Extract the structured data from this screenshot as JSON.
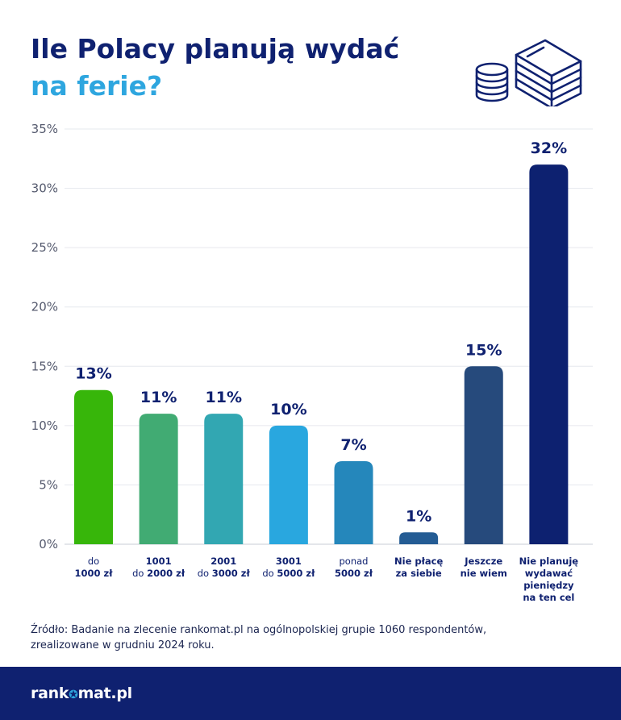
{
  "title": {
    "line1": "Ile Polacy planują wydać",
    "line2": "na ferie?"
  },
  "source": {
    "line1": "Źródło: Badanie na zlecenie rankomat.pl na ogólnopolskiej grupie 1060 respondentów,",
    "line2": "zrealizowane w grudniu 2024 roku."
  },
  "footer": {
    "logo_left": "rank",
    "logo_right": "mat.pl"
  },
  "chart_data": {
    "type": "bar",
    "ylim": [
      0,
      35
    ],
    "yticks": [
      "0%",
      "5%",
      "10%",
      "15%",
      "20%",
      "25%",
      "30%",
      "35%"
    ],
    "grid": true,
    "categories": [
      {
        "lines": [
          {
            "t": "do",
            "b": false
          },
          {
            "t": "1000 zł",
            "b": true
          }
        ]
      },
      {
        "lines": [
          {
            "t": "1001",
            "b": true
          },
          {
            "t": "do ",
            "b": false,
            "t2": "2000 zł"
          }
        ]
      },
      {
        "lines": [
          {
            "t": "2001",
            "b": true
          },
          {
            "t": "do ",
            "b": false,
            "t2": "3000 zł"
          }
        ]
      },
      {
        "lines": [
          {
            "t": "3001",
            "b": true
          },
          {
            "t": "do ",
            "b": false,
            "t2": "5000 zł"
          }
        ]
      },
      {
        "lines": [
          {
            "t": "ponad",
            "b": false
          },
          {
            "t": "5000 zł",
            "b": true
          }
        ]
      },
      {
        "lines": [
          {
            "t": "Nie płacę",
            "b": true
          },
          {
            "t": "za siebie",
            "b": true
          }
        ]
      },
      {
        "lines": [
          {
            "t": "Jeszcze",
            "b": true
          },
          {
            "t": "nie wiem",
            "b": true
          }
        ]
      },
      {
        "lines": [
          {
            "t": "Nie planuję",
            "b": true
          },
          {
            "t": "wydawać",
            "b": true
          },
          {
            "t": "pieniędzy",
            "b": true
          },
          {
            "t": "na ten cel",
            "b": true
          }
        ]
      }
    ],
    "values": [
      13,
      11,
      11,
      10,
      7,
      1,
      15,
      32
    ],
    "labels": [
      "13%",
      "11%",
      "11%",
      "10%",
      "7%",
      "1%",
      "15%",
      "32%"
    ],
    "colors": [
      "#37b60a",
      "#41ab73",
      "#32a7b2",
      "#29a7df",
      "#2587bb",
      "#245c94",
      "#264a7c",
      "#0d2170"
    ]
  }
}
